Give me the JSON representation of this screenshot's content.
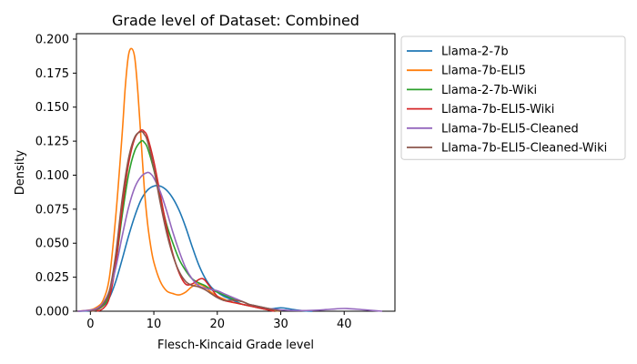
{
  "chart_data": {
    "type": "line",
    "title": "Grade level of Dataset: Combined",
    "xlabel": "Flesch-Kincaid Grade level",
    "ylabel": "Density",
    "xlim": [
      -2.2,
      48
    ],
    "ylim": [
      0,
      0.204
    ],
    "x_ticks": [
      0,
      10,
      20,
      30,
      40
    ],
    "y_ticks": [
      0.0,
      0.025,
      0.05,
      0.075,
      0.1,
      0.125,
      0.15,
      0.175,
      0.2
    ],
    "x_tick_labels": [
      "0",
      "10",
      "20",
      "30",
      "40"
    ],
    "y_tick_labels": [
      "0.000",
      "0.025",
      "0.050",
      "0.075",
      "0.100",
      "0.125",
      "0.150",
      "0.175",
      "0.200"
    ],
    "grid": false,
    "legend_position": "outside-right-top",
    "series": [
      {
        "name": "Llama-2-7b",
        "color": "#1f77b4",
        "x": [
          -2,
          0,
          2,
          3,
          4,
          5,
          6,
          7,
          8,
          9,
          10,
          11,
          12,
          13,
          14,
          15,
          16,
          17,
          18,
          19,
          20,
          21,
          22,
          23,
          24,
          25,
          26,
          27,
          28,
          29,
          30,
          31,
          32,
          33,
          34,
          35
        ],
        "y": [
          0.0,
          0.0005,
          0.004,
          0.01,
          0.022,
          0.038,
          0.055,
          0.07,
          0.082,
          0.089,
          0.092,
          0.092,
          0.089,
          0.083,
          0.074,
          0.062,
          0.048,
          0.035,
          0.025,
          0.018,
          0.014,
          0.011,
          0.009,
          0.007,
          0.005,
          0.004,
          0.003,
          0.002,
          0.0015,
          0.002,
          0.0025,
          0.002,
          0.0012,
          0.0006,
          0.0002,
          0.0
        ]
      },
      {
        "name": "Llama-7b-ELI5",
        "color": "#ff7f0e",
        "x": [
          -2,
          0,
          1,
          2,
          3,
          4,
          5,
          5.5,
          6,
          6.5,
          7,
          7.5,
          8,
          8.5,
          9,
          9.5,
          10,
          11,
          12,
          13,
          14,
          15,
          16,
          17,
          18,
          19,
          20,
          21,
          22,
          23,
          24,
          25,
          26,
          27,
          28,
          29,
          30
        ],
        "y": [
          0.0,
          0.001,
          0.003,
          0.008,
          0.025,
          0.07,
          0.13,
          0.165,
          0.188,
          0.193,
          0.186,
          0.16,
          0.125,
          0.09,
          0.065,
          0.048,
          0.036,
          0.022,
          0.015,
          0.013,
          0.012,
          0.014,
          0.018,
          0.02,
          0.018,
          0.014,
          0.011,
          0.009,
          0.007,
          0.006,
          0.005,
          0.004,
          0.003,
          0.002,
          0.001,
          0.0005,
          0.0
        ]
      },
      {
        "name": "Llama-2-7b-Wiki",
        "color": "#2ca02c",
        "x": [
          0,
          1,
          2,
          3,
          4,
          5,
          6,
          7,
          8,
          8.5,
          9,
          10,
          11,
          12,
          13,
          14,
          15,
          16,
          17,
          18,
          19,
          20,
          21,
          22,
          23,
          24,
          25,
          26,
          27,
          28,
          29,
          30
        ],
        "y": [
          0.0,
          0.001,
          0.004,
          0.012,
          0.035,
          0.07,
          0.1,
          0.118,
          0.125,
          0.124,
          0.12,
          0.104,
          0.083,
          0.064,
          0.05,
          0.038,
          0.03,
          0.024,
          0.021,
          0.019,
          0.016,
          0.014,
          0.012,
          0.01,
          0.008,
          0.007,
          0.005,
          0.004,
          0.003,
          0.002,
          0.001,
          0.0
        ]
      },
      {
        "name": "Llama-7b-ELI5-Wiki",
        "color": "#d62728",
        "x": [
          1,
          2,
          3,
          4,
          5,
          6,
          7,
          8,
          8.5,
          9,
          10,
          11,
          12,
          13,
          14,
          15,
          16,
          17,
          17.5,
          18,
          19,
          20,
          21,
          22,
          23,
          24,
          25,
          26,
          27,
          28,
          29
        ],
        "y": [
          0.0,
          0.002,
          0.01,
          0.035,
          0.075,
          0.108,
          0.127,
          0.133,
          0.132,
          0.128,
          0.11,
          0.086,
          0.062,
          0.042,
          0.028,
          0.02,
          0.02,
          0.023,
          0.024,
          0.023,
          0.017,
          0.011,
          0.008,
          0.007,
          0.006,
          0.005,
          0.004,
          0.003,
          0.002,
          0.001,
          0.0
        ]
      },
      {
        "name": "Llama-7b-ELI5-Cleaned",
        "color": "#9467bd",
        "x": [
          -2,
          0,
          1,
          2,
          3,
          4,
          5,
          6,
          7,
          8,
          9,
          9.5,
          10,
          11,
          12,
          13,
          14,
          15,
          16,
          17,
          18,
          19,
          20,
          21,
          22,
          23,
          24,
          25,
          26,
          27,
          28,
          30,
          32,
          34,
          36,
          38,
          40,
          42,
          44,
          46
        ],
        "y": [
          0.0,
          0.0008,
          0.002,
          0.006,
          0.015,
          0.032,
          0.055,
          0.076,
          0.091,
          0.099,
          0.102,
          0.101,
          0.098,
          0.088,
          0.074,
          0.058,
          0.044,
          0.032,
          0.024,
          0.019,
          0.017,
          0.016,
          0.015,
          0.013,
          0.011,
          0.009,
          0.007,
          0.005,
          0.004,
          0.003,
          0.002,
          0.001,
          0.0005,
          0.0005,
          0.0008,
          0.0015,
          0.002,
          0.0015,
          0.0007,
          0.0
        ]
      },
      {
        "name": "Llama-7b-ELI5-Cleaned-Wiki",
        "color": "#8c564b",
        "x": [
          0,
          1,
          2,
          3,
          4,
          5,
          6,
          7,
          8,
          8.5,
          9,
          10,
          11,
          12,
          13,
          14,
          15,
          16,
          17,
          18,
          19,
          20,
          21,
          22,
          23,
          24,
          25,
          26,
          27,
          28,
          29,
          30
        ],
        "y": [
          0.0,
          0.001,
          0.005,
          0.015,
          0.042,
          0.082,
          0.112,
          0.128,
          0.132,
          0.13,
          0.125,
          0.105,
          0.08,
          0.058,
          0.041,
          0.029,
          0.022,
          0.019,
          0.018,
          0.016,
          0.013,
          0.01,
          0.008,
          0.008,
          0.008,
          0.007,
          0.005,
          0.004,
          0.003,
          0.002,
          0.001,
          0.0
        ]
      }
    ]
  }
}
